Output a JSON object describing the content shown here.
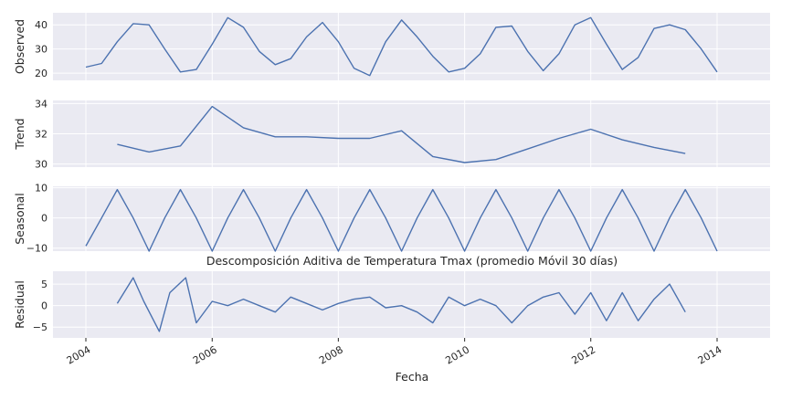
{
  "chart_data": {
    "type": "line",
    "title": "Descomposición Aditiva de Temperatura Tmax (promedio Móvil 30 días)",
    "xlabel": "Fecha",
    "x_range": [
      "2004-01-01",
      "2014-01-01"
    ],
    "x_ticks": [
      "2004",
      "2006",
      "2008",
      "2010",
      "2012",
      "2014"
    ],
    "line_color": "#4c72b0",
    "panel_background": "#eaeaf2",
    "grid": true,
    "panels": [
      {
        "name": "observed",
        "ylabel": "Observed",
        "ylim": [
          17,
          45
        ],
        "y_ticks": [
          "20",
          "30",
          "40"
        ],
        "x": [
          "2004-01",
          "2004-04",
          "2004-07",
          "2004-10",
          "2005-01",
          "2005-04",
          "2005-07",
          "2005-10",
          "2006-01",
          "2006-04",
          "2006-07",
          "2006-10",
          "2007-01",
          "2007-04",
          "2007-07",
          "2007-10",
          "2008-01",
          "2008-04",
          "2008-07",
          "2008-10",
          "2009-01",
          "2009-04",
          "2009-07",
          "2009-10",
          "2010-01",
          "2010-04",
          "2010-07",
          "2010-10",
          "2011-01",
          "2011-04",
          "2011-07",
          "2011-10",
          "2012-01",
          "2012-04",
          "2012-07",
          "2012-10",
          "2013-01",
          "2013-04",
          "2013-07",
          "2013-10",
          "2014-01"
        ],
        "values": [
          22.5,
          24,
          33,
          40.5,
          40,
          30,
          20.5,
          21.5,
          32,
          43,
          39,
          29,
          23.5,
          26,
          35,
          41,
          33,
          22,
          19,
          33,
          42,
          35,
          27,
          20.5,
          22,
          28,
          39,
          39.5,
          29,
          21,
          28,
          40,
          43,
          32,
          21.5,
          26.5,
          38.5,
          40,
          38,
          30,
          20.5
        ]
      },
      {
        "name": "trend",
        "ylabel": "Trend",
        "ylim": [
          29.8,
          34.2
        ],
        "y_ticks": [
          "30",
          "32",
          "34"
        ],
        "x": [
          "2004-07",
          "2005-01",
          "2005-07",
          "2006-01",
          "2006-07",
          "2007-01",
          "2007-07",
          "2008-01",
          "2008-07",
          "2009-01",
          "2009-07",
          "2010-01",
          "2010-07",
          "2011-01",
          "2011-07",
          "2012-01",
          "2012-07",
          "2013-01",
          "2013-07"
        ],
        "values": [
          31.3,
          30.8,
          31.2,
          33.8,
          32.4,
          31.8,
          31.8,
          31.7,
          31.7,
          32.2,
          30.5,
          30.1,
          30.3,
          31,
          31.7,
          32.3,
          31.6,
          31.1,
          30.7
        ]
      },
      {
        "name": "seasonal",
        "ylabel": "Seasonal",
        "ylim": [
          -11,
          10.5
        ],
        "y_ticks": [
          "10",
          "0",
          "−10"
        ],
        "x": [
          "2004-01",
          "2004-04",
          "2004-07",
          "2004-10",
          "2005-01",
          "2005-04",
          "2005-07",
          "2005-10",
          "2006-01",
          "2006-04",
          "2006-07",
          "2006-10",
          "2007-01",
          "2007-04",
          "2007-07",
          "2007-10",
          "2008-01",
          "2008-04",
          "2008-07",
          "2008-10",
          "2009-01",
          "2009-04",
          "2009-07",
          "2009-10",
          "2010-01",
          "2010-04",
          "2010-07",
          "2010-10",
          "2011-01",
          "2011-04",
          "2011-07",
          "2011-10",
          "2012-01",
          "2012-04",
          "2012-07",
          "2012-10",
          "2013-01",
          "2013-04",
          "2013-07",
          "2013-10",
          "2014-01"
        ],
        "values": [
          -9.3,
          0,
          9.4,
          0,
          -11,
          0,
          9.4,
          0,
          -11,
          0,
          9.4,
          0,
          -11,
          0,
          9.4,
          0,
          -11,
          0,
          9.4,
          0,
          -11,
          0,
          9.4,
          0,
          -11,
          0,
          9.4,
          0,
          -11,
          0,
          9.4,
          0,
          -11,
          0,
          9.4,
          0,
          -11,
          0,
          9.4,
          0,
          -11
        ]
      },
      {
        "name": "residual",
        "ylabel": "Residual",
        "ylim": [
          -7.5,
          8
        ],
        "y_ticks": [
          "5",
          "0",
          "−5"
        ],
        "x": [
          "2004-07",
          "2004-10",
          "2004-12",
          "2005-03",
          "2005-05",
          "2005-08",
          "2005-10",
          "2006-01",
          "2006-04",
          "2006-07",
          "2006-10",
          "2007-01",
          "2007-04",
          "2007-07",
          "2007-10",
          "2008-01",
          "2008-04",
          "2008-07",
          "2008-10",
          "2009-01",
          "2009-04",
          "2009-07",
          "2009-10",
          "2010-01",
          "2010-04",
          "2010-07",
          "2010-10",
          "2011-01",
          "2011-04",
          "2011-07",
          "2011-10",
          "2012-01",
          "2012-04",
          "2012-07",
          "2012-10",
          "2013-01",
          "2013-04",
          "2013-07"
        ],
        "values": [
          0.5,
          6.5,
          1,
          -6,
          3,
          6.5,
          -4,
          1,
          0,
          1.5,
          0,
          -1.5,
          2,
          0.5,
          -1,
          0.5,
          1.5,
          2,
          -0.5,
          0,
          -1.5,
          -4,
          2,
          0,
          1.5,
          0,
          -4,
          0,
          2,
          3,
          -2,
          3,
          -3.5,
          3,
          -3.5,
          1.5,
          5,
          -1.5
        ]
      }
    ]
  }
}
